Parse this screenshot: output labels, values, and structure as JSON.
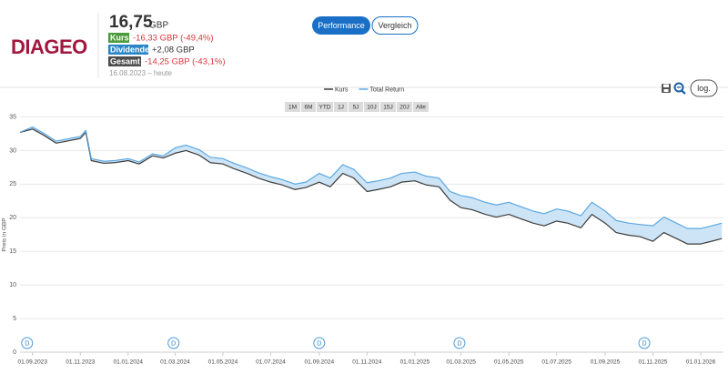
{
  "header": {
    "logo": "DIAGEO",
    "price": "16,75",
    "currency": "GBP",
    "rows": [
      {
        "label": "Kurs",
        "value": "-16,33 GBP (-49,4%)"
      },
      {
        "label": "Dividende",
        "value": "+2,08 GBP"
      },
      {
        "label": "Gesamt",
        "value": "-14,25 GBP (-43,1%)"
      }
    ],
    "period": "16.08.2023 – heute"
  },
  "tabs": [
    "Performance",
    "Vergleich"
  ],
  "ranges": [
    "1M",
    "6M",
    "YTD",
    "1J",
    "5J",
    "10J",
    "15J",
    "20J",
    "Alle"
  ],
  "log_button": "log.",
  "chart_data": {
    "type": "line",
    "ylabel": "Preis in GBP",
    "x": [
      "2023-08-16",
      "2023-09-01",
      "2023-09-15",
      "2023-10-01",
      "2023-10-15",
      "2023-11-01",
      "2023-11-08",
      "2023-11-15",
      "2023-12-01",
      "2023-12-15",
      "2024-01-01",
      "2024-01-15",
      "2024-02-01",
      "2024-02-15",
      "2024-03-01",
      "2024-03-15",
      "2024-04-01",
      "2024-04-15",
      "2024-05-01",
      "2024-05-15",
      "2024-06-01",
      "2024-06-15",
      "2024-07-01",
      "2024-07-15",
      "2024-08-01",
      "2024-08-15",
      "2024-09-01",
      "2024-09-15",
      "2024-10-01",
      "2024-10-15",
      "2024-11-01",
      "2024-11-15",
      "2024-12-01",
      "2024-12-15",
      "2025-01-01",
      "2025-01-15",
      "2025-02-01",
      "2025-02-15",
      "2025-03-01",
      "2025-03-15",
      "2025-04-01",
      "2025-04-15",
      "2025-05-01",
      "2025-05-15",
      "2025-06-01",
      "2025-06-15",
      "2025-07-01",
      "2025-07-15",
      "2025-08-01",
      "2025-08-15",
      "2025-09-01",
      "2025-09-15",
      "2025-10-01",
      "2025-10-15",
      "2025-11-01",
      "2025-11-15",
      "2025-12-01",
      "2025-12-15",
      "2026-01-01",
      "2026-01-15",
      "2026-01-28"
    ],
    "xlim": [
      "2023-08-16",
      "2026-01-30"
    ],
    "xticks": [
      {
        "value": "2023-09-01",
        "label": "01.09.2023"
      },
      {
        "value": "2023-11-01",
        "label": "01.11.2023"
      },
      {
        "value": "2024-01-01",
        "label": "01.01.2024"
      },
      {
        "value": "2024-03-01",
        "label": "01.03.2024"
      },
      {
        "value": "2024-05-01",
        "label": "01.05.2024"
      },
      {
        "value": "2024-07-01",
        "label": "01.07.2024"
      },
      {
        "value": "2024-09-01",
        "label": "01.09.2024"
      },
      {
        "value": "2024-11-01",
        "label": "01.11.2024"
      },
      {
        "value": "2025-01-01",
        "label": "01.01.2025"
      },
      {
        "value": "2025-03-01",
        "label": "01.03.2025"
      },
      {
        "value": "2025-05-01",
        "label": "01.05.2025"
      },
      {
        "value": "2025-07-01",
        "label": "01.07.2025"
      },
      {
        "value": "2025-09-01",
        "label": "01.09.2025"
      },
      {
        "value": "2025-11-01",
        "label": "01.11.2025"
      },
      {
        "value": "2026-01-01",
        "label": "01.01.2026"
      }
    ],
    "ylim": [
      0,
      35
    ],
    "yticks": [
      0,
      5,
      10,
      15,
      20,
      25,
      30,
      35
    ],
    "grid": true,
    "fill_between_color": "#cde4f6",
    "series": [
      {
        "name": "Kurs",
        "color": "#3c3c3c",
        "values": [
          32.7,
          33.2,
          32.3,
          31.1,
          31.4,
          31.8,
          32.7,
          28.5,
          28.1,
          28.2,
          28.5,
          28.0,
          29.2,
          28.9,
          29.6,
          30.0,
          29.3,
          28.2,
          28.0,
          27.3,
          26.6,
          25.9,
          25.3,
          24.9,
          24.2,
          24.5,
          25.3,
          24.6,
          26.6,
          25.9,
          23.9,
          24.2,
          24.6,
          25.3,
          25.5,
          24.9,
          24.6,
          22.6,
          21.5,
          21.2,
          20.5,
          20.1,
          20.5,
          19.9,
          19.2,
          18.8,
          19.5,
          19.2,
          18.5,
          20.5,
          19.2,
          17.8,
          17.4,
          17.2,
          16.5,
          17.8,
          16.9,
          16.1,
          16.1,
          16.5,
          16.9
        ]
      },
      {
        "name": "Total Return",
        "color": "#5aa8e2",
        "values": [
          32.7,
          33.5,
          32.6,
          31.4,
          31.7,
          32.1,
          33.0,
          28.8,
          28.4,
          28.5,
          28.8,
          28.3,
          29.5,
          29.2,
          30.4,
          30.8,
          30.1,
          29.0,
          28.8,
          28.1,
          27.4,
          26.7,
          26.1,
          25.7,
          25.0,
          25.3,
          26.6,
          25.9,
          27.9,
          27.2,
          25.2,
          25.5,
          25.9,
          26.6,
          26.8,
          26.2,
          25.9,
          23.9,
          23.3,
          23.0,
          22.3,
          21.9,
          22.3,
          21.7,
          21.0,
          20.6,
          21.3,
          21.0,
          20.3,
          22.3,
          21.0,
          19.6,
          19.2,
          19.0,
          18.8,
          20.1,
          19.2,
          18.4,
          18.4,
          18.8,
          19.2
        ]
      }
    ],
    "dividend_label": "D",
    "dividend_dates": [
      "2023-08-25",
      "2024-02-28",
      "2024-09-01",
      "2025-02-27",
      "2025-10-21"
    ]
  }
}
